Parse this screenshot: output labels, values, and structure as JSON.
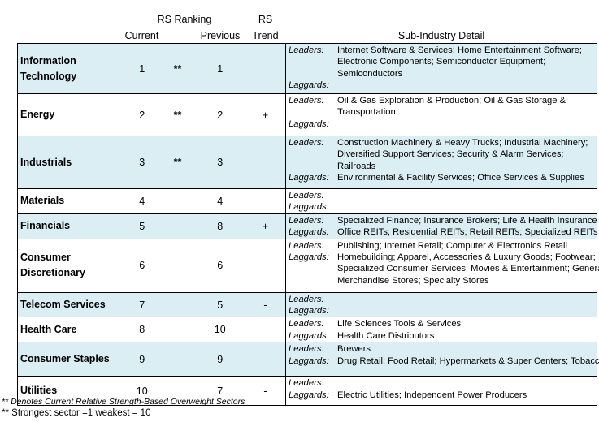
{
  "header": {
    "rs_ranking": "RS Ranking",
    "current": "Current",
    "previous": "Previous",
    "rs": "RS",
    "trend": "Trend",
    "detail": "Sub-Industry Detail"
  },
  "labels": {
    "leaders": "Leaders:",
    "laggards": "Laggards:"
  },
  "rows": [
    {
      "sector": [
        "Information",
        "Technology"
      ],
      "current": "1",
      "star": "**",
      "previous": "1",
      "trend": "",
      "leaders": [
        "Internet Software & Services; Home Entertainment Software;",
        "Electronic Components; Semiconductor Equipment;",
        "Semiconductors"
      ],
      "laggards": [],
      "shaded": true
    },
    {
      "sector": [
        "Energy"
      ],
      "current": "2",
      "star": "**",
      "previous": "2",
      "trend": "+",
      "leaders": [
        "Oil & Gas Exploration & Production; Oil & Gas Storage &",
        "Transportation"
      ],
      "laggards": [],
      "shaded": false
    },
    {
      "sector": [
        "Industrials"
      ],
      "current": "3",
      "star": "**",
      "previous": "3",
      "trend": "",
      "leaders": [
        "Construction Machinery & Heavy Trucks; Industrial Machinery;",
        "Diversified Support Services; Security & Alarm Services;",
        "Railroads"
      ],
      "laggards": [
        "Environmental & Facility Services; Office Services & Supplies"
      ],
      "shaded": true
    },
    {
      "sector": [
        "Materials"
      ],
      "current": "4",
      "star": "",
      "previous": "4",
      "trend": "",
      "leaders": [],
      "laggards": [],
      "shaded": false
    },
    {
      "sector": [
        "Financials"
      ],
      "current": "5",
      "star": "",
      "previous": "8",
      "trend": "+",
      "leaders": [
        "Specialized Finance; Insurance Brokers; Life & Health Insurance"
      ],
      "laggards": [
        "Office REITs; Residential REITs; Retail REITs; Specialized REITs"
      ],
      "shaded": true
    },
    {
      "sector": [
        "Consumer",
        "Discretionary"
      ],
      "current": "6",
      "star": "",
      "previous": "6",
      "trend": "",
      "leaders": [
        "Publishing; Internet Retail; Computer & Electronics Retail"
      ],
      "laggards": [
        "Homebuilding; Apparel, Accessories & Luxury Goods; Footwear;",
        "Specialized Consumer Services; Movies & Entertainment; General",
        "Merchandise Stores; Specialty Stores"
      ],
      "shaded": false
    },
    {
      "sector": [
        "Telecom Services"
      ],
      "current": "7",
      "star": "",
      "previous": "5",
      "trend": "-",
      "leaders": [],
      "laggards": [],
      "shaded": true
    },
    {
      "sector": [
        "Health Care"
      ],
      "current": "8",
      "star": "",
      "previous": "10",
      "trend": "",
      "leaders": [
        "Life Sciences Tools & Services"
      ],
      "laggards": [
        "Health Care Distributors"
      ],
      "shaded": false
    },
    {
      "sector": [
        "Consumer Staples"
      ],
      "current": "9",
      "star": "",
      "previous": "9",
      "trend": "",
      "leaders": [
        "Brewers"
      ],
      "laggards": [
        "Drug Retail; Food Retail; Hypermarkets & Super Centers; Tobacco"
      ],
      "shaded": true
    },
    {
      "sector": [
        "Utilities"
      ],
      "current": "10",
      "star": "",
      "previous": "7",
      "trend": "-",
      "leaders": [],
      "laggards": [
        "Electric Utilities; Independent Power Producers"
      ],
      "shaded": false
    }
  ],
  "footnotes": {
    "overweight": "** Denotes Current Relative Strength-Based Overweight Sectors",
    "scale": "** Strongest sector =1 weakest = 10"
  }
}
